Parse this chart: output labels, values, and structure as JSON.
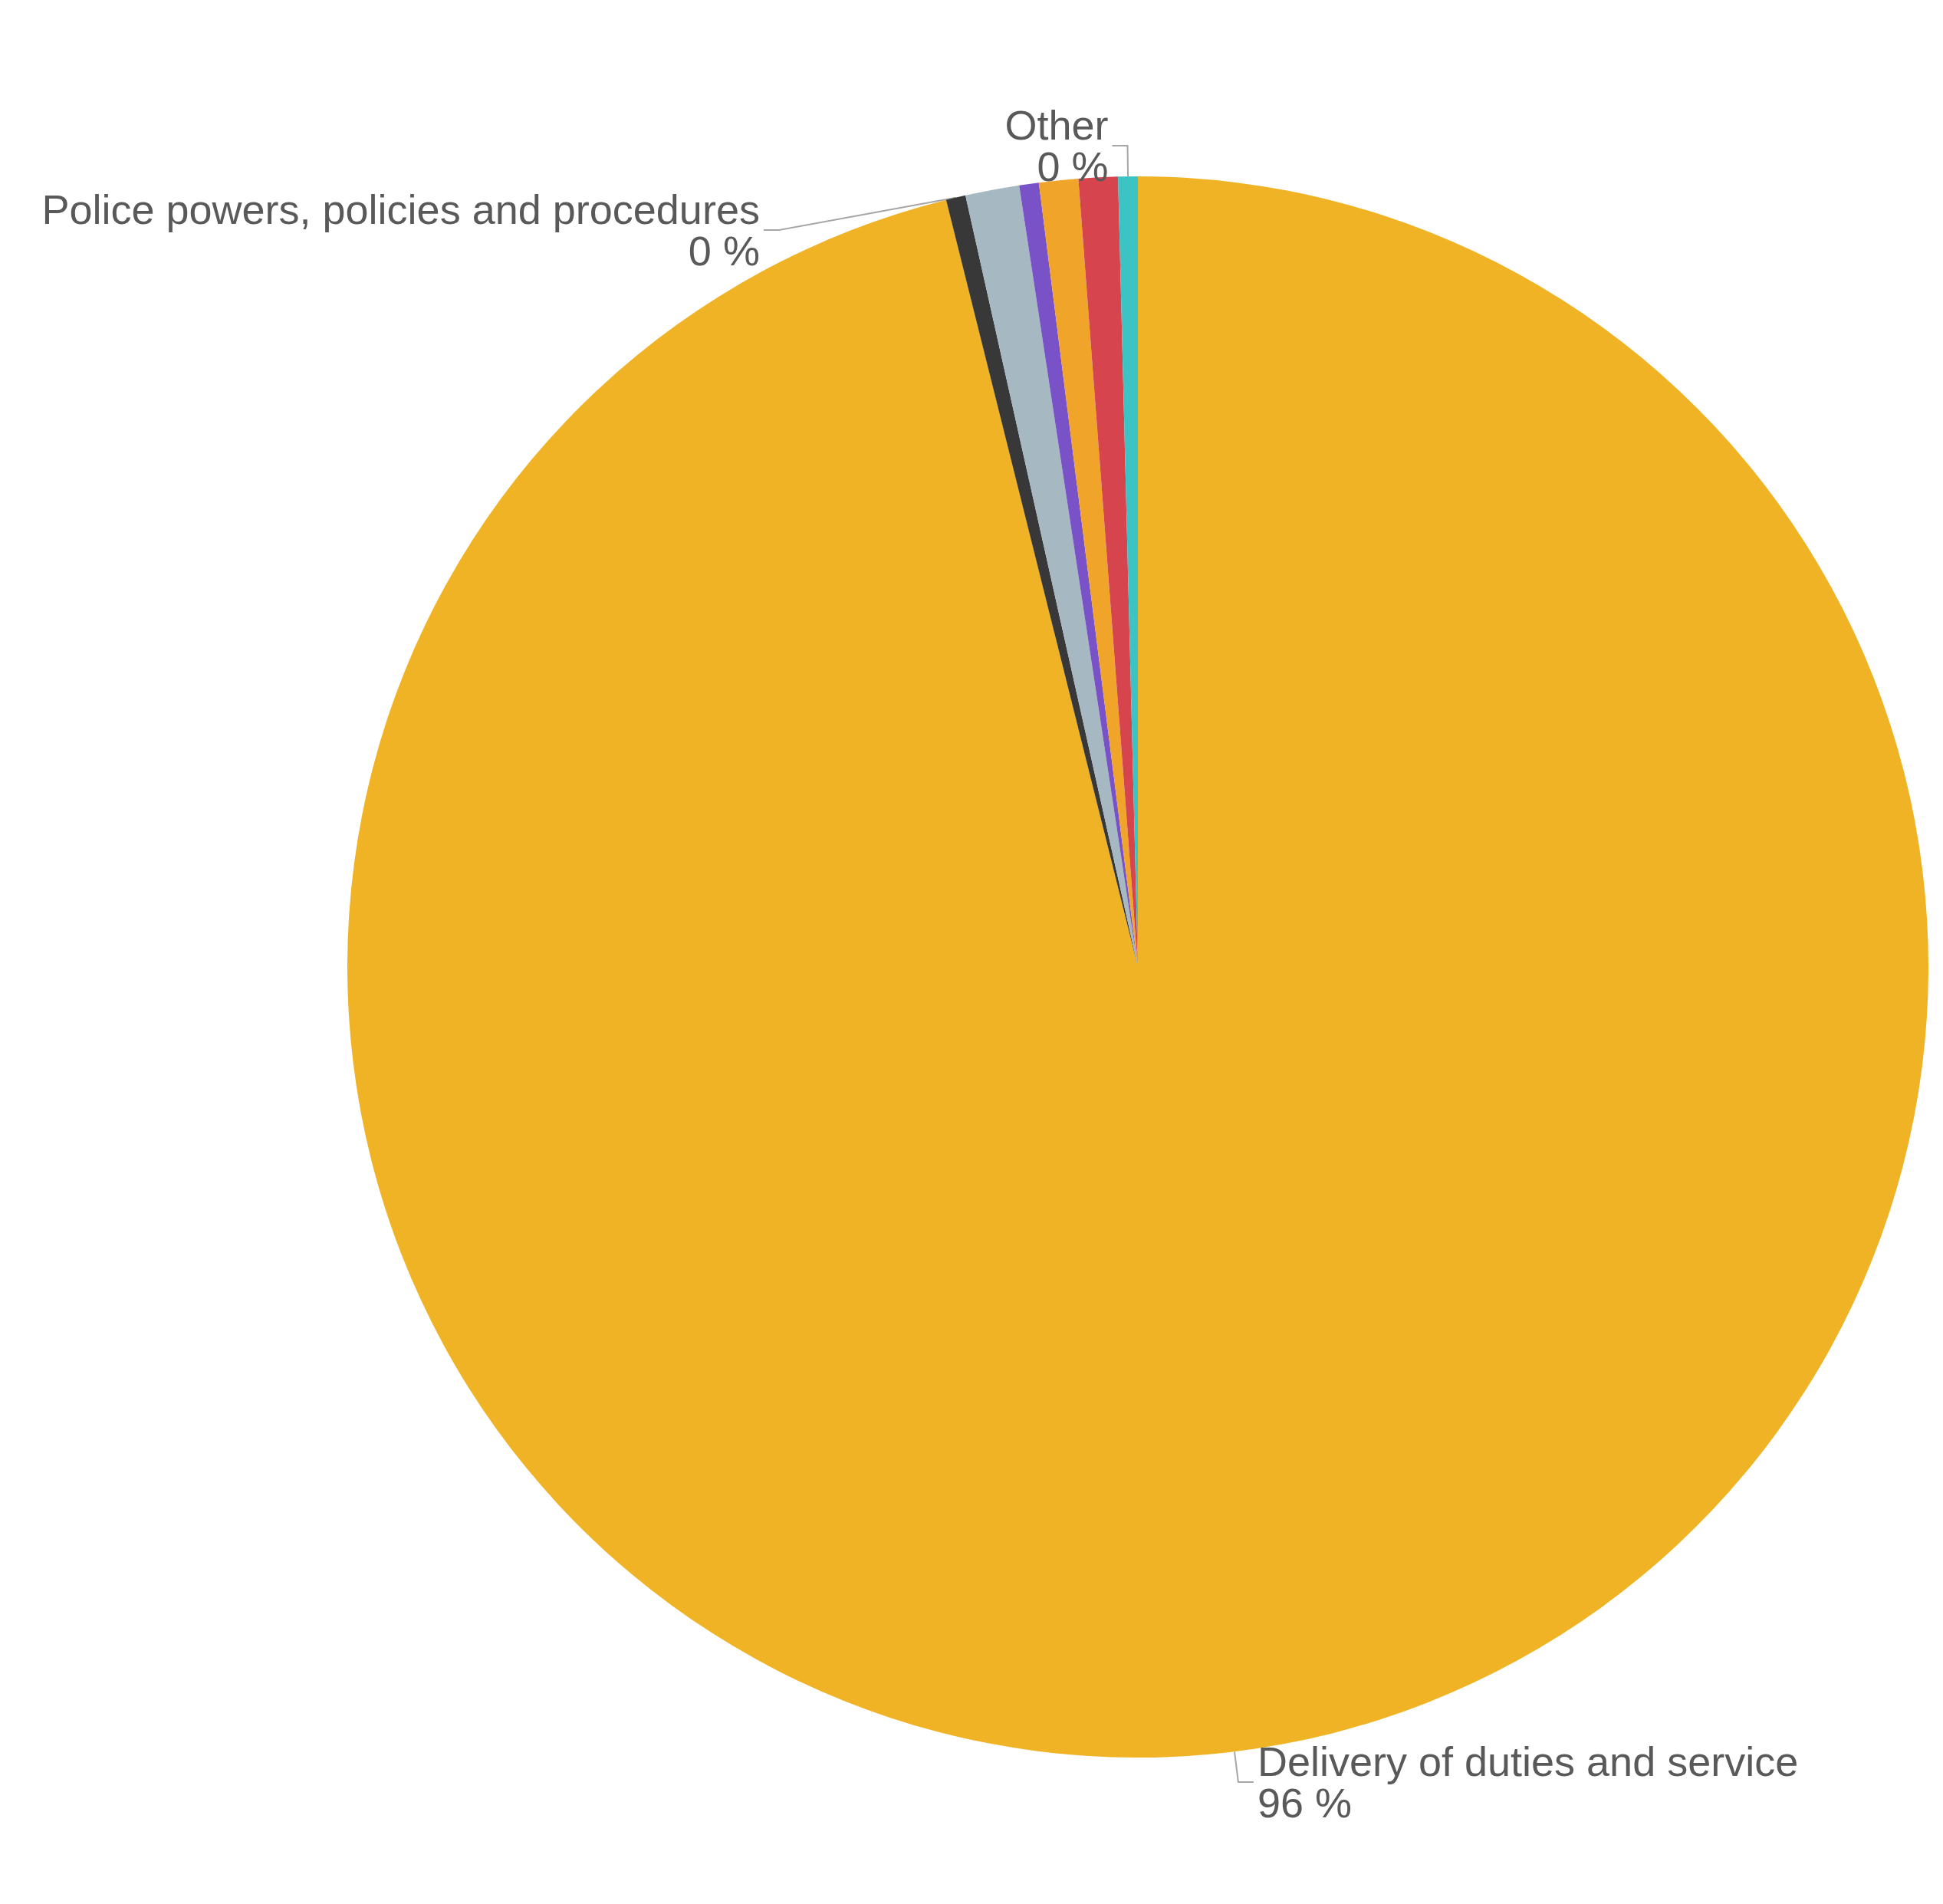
{
  "chart_data": {
    "type": "pie",
    "categories": [
      "Delivery of duties and service",
      "Police powers, policies and procedures",
      null,
      null,
      null,
      null,
      "Other"
    ],
    "values": [
      96.1,
      0.4,
      1.1,
      0.4,
      0.8,
      0.8,
      0.4
    ],
    "colors": [
      "#efb325",
      "#383838",
      "#a6b8c2",
      "#7a52c7",
      "#f0a52a",
      "#d6444e",
      "#3cc4c4"
    ],
    "value_labels": [
      "96 %",
      "0 %",
      null,
      null,
      null,
      null,
      "0 %"
    ]
  }
}
